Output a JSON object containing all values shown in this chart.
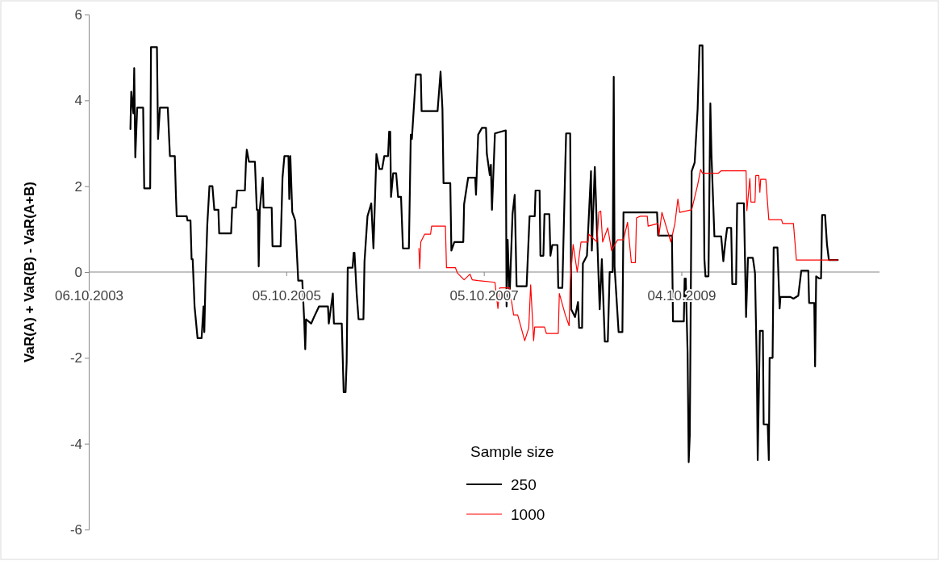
{
  "chart_data": {
    "type": "line",
    "ylabel": "VaR(A) + VaR(B) - VaR(A+B)",
    "legend_title": "Sample size",
    "legend": "bottom",
    "grid": false,
    "marker": "none",
    "line_style": "solid",
    "xlim": [
      "2003-10-06",
      "2011-10-06"
    ],
    "xticks": [
      {
        "value": "2003-10-06",
        "label": "06.10.2003"
      },
      {
        "value": "2005-10-05",
        "label": "05.10.2005"
      },
      {
        "value": "2007-10-05",
        "label": "05.10.2007"
      },
      {
        "value": "2009-10-04",
        "label": "04.10.2009"
      }
    ],
    "ylim": [
      -6,
      6
    ],
    "yticks": [
      -6,
      -4,
      -2,
      0,
      2,
      4,
      6
    ],
    "series": [
      {
        "name": "250",
        "color": "#000000",
        "x": [
          "2004-03-08",
          "2004-03-11",
          "2004-03-19",
          "2004-03-22",
          "2004-03-26",
          "2004-04-02",
          "2004-04-24",
          "2004-04-28",
          "2004-05-20",
          "2004-05-23",
          "2004-06-14",
          "2004-06-18",
          "2004-06-25",
          "2004-07-24",
          "2004-08-01",
          "2004-08-19",
          "2004-08-23",
          "2004-08-26",
          "2004-10-02",
          "2004-10-05",
          "2004-10-16",
          "2004-10-20",
          "2004-10-24",
          "2004-10-31",
          "2004-11-11",
          "2004-11-26",
          "2004-12-03",
          "2004-12-06",
          "2004-12-10",
          "2004-12-17",
          "2004-12-25",
          "2005-01-05",
          "2005-01-12",
          "2005-01-27",
          "2005-01-30",
          "2005-03-15",
          "2005-03-19",
          "2005-04-02",
          "2005-04-06",
          "2005-05-05",
          "2005-05-09",
          "2005-05-12",
          "2005-05-20",
          "2005-06-11",
          "2005-06-18",
          "2005-06-22",
          "2005-06-25",
          "2005-06-29",
          "2005-07-10",
          "2005-07-13",
          "2005-08-12",
          "2005-08-15",
          "2005-09-14",
          "2005-09-21",
          "2005-09-28",
          "2005-10-13",
          "2005-10-16",
          "2005-10-20",
          "2005-10-27",
          "2005-11-07",
          "2005-11-15",
          "2005-11-18",
          "2005-12-03",
          "2005-12-10",
          "2005-12-14",
          "2005-12-17",
          "2006-01-05",
          "2006-01-19",
          "2006-02-03",
          "2006-03-08",
          "2006-03-11",
          "2006-03-26",
          "2006-03-30",
          "2006-04-28",
          "2006-05-05",
          "2006-05-12",
          "2006-05-16",
          "2006-05-20",
          "2006-06-07",
          "2006-06-11",
          "2006-06-14",
          "2006-06-22",
          "2006-06-29",
          "2006-07-17",
          "2006-07-21",
          "2006-08-01",
          "2006-08-15",
          "2006-08-23",
          "2006-09-03",
          "2006-09-14",
          "2006-09-24",
          "2006-10-02",
          "2006-10-16",
          "2006-10-20",
          "2006-10-24",
          "2006-10-27",
          "2006-11-04",
          "2006-11-15",
          "2006-11-22",
          "2006-12-03",
          "2006-12-10",
          "2007-01-01",
          "2007-01-08",
          "2007-01-12",
          "2007-01-27",
          "2007-02-14",
          "2007-02-17",
          "2007-04-17",
          "2007-04-28",
          "2007-05-05",
          "2007-05-09",
          "2007-06-03",
          "2007-06-07",
          "2007-06-18",
          "2007-07-21",
          "2007-07-24",
          "2007-08-08",
          "2007-09-03",
          "2007-09-06",
          "2007-09-14",
          "2007-09-28",
          "2007-10-13",
          "2007-10-16",
          "2007-10-27",
          "2007-10-31",
          "2007-11-04",
          "2007-11-15",
          "2007-12-25",
          "2007-12-28",
          "2008-01-01",
          "2008-01-08",
          "2008-01-19",
          "2008-01-27",
          "2008-02-03",
          "2008-03-11",
          "2008-03-22",
          "2008-04-10",
          "2008-04-13",
          "2008-04-28",
          "2008-05-01",
          "2008-05-12",
          "2008-05-16",
          "2008-06-03",
          "2008-06-07",
          "2008-06-14",
          "2008-07-03",
          "2008-07-06",
          "2008-07-21",
          "2008-08-01",
          "2008-08-04",
          "2008-08-19",
          "2008-08-23",
          "2008-09-06",
          "2008-09-17",
          "2008-09-21",
          "2008-10-02",
          "2008-10-05",
          "2008-10-20",
          "2008-11-04",
          "2008-11-07",
          "2008-11-18",
          "2008-12-06",
          "2008-12-14",
          "2008-12-25",
          "2009-01-05",
          "2009-01-12",
          "2009-01-23",
          "2009-01-27",
          "2009-01-30",
          "2009-02-14",
          "2009-02-28",
          "2009-03-04",
          "2009-07-06",
          "2009-07-10",
          "2009-08-30",
          "2009-09-03",
          "2009-10-13",
          "2009-10-16",
          "2009-10-20",
          "2009-10-27",
          "2009-10-31",
          "2009-11-04",
          "2009-11-11",
          "2009-11-22",
          "2009-12-03",
          "2009-12-10",
          "2009-12-21",
          "2009-12-28",
          "2010-01-01",
          "2010-01-12",
          "2010-01-19",
          "2010-01-23",
          "2010-02-03",
          "2010-02-28",
          "2010-03-08",
          "2010-03-15",
          "2010-03-22",
          "2010-04-06",
          "2010-04-10",
          "2010-04-24",
          "2010-04-28",
          "2010-05-23",
          "2010-05-27",
          "2010-05-31",
          "2010-06-07",
          "2010-06-25",
          "2010-07-03",
          "2010-07-10",
          "2010-07-13",
          "2010-07-21",
          "2010-08-01",
          "2010-08-04",
          "2010-08-19",
          "2010-08-23",
          "2010-08-26",
          "2010-09-06",
          "2010-09-10",
          "2010-09-24",
          "2010-10-02",
          "2010-10-05",
          "2010-11-11",
          "2010-11-22",
          "2010-12-10",
          "2010-12-21",
          "2011-01-16",
          "2011-01-19",
          "2011-02-07",
          "2011-02-10",
          "2011-02-14",
          "2011-02-25",
          "2011-03-04",
          "2011-03-08",
          "2011-03-19",
          "2011-03-26",
          "2011-04-02",
          "2011-05-05"
        ],
        "values": [
          3.33,
          4.2,
          3.7,
          4.75,
          2.67,
          3.83,
          3.83,
          1.95,
          1.95,
          5.24,
          5.24,
          3.1,
          3.83,
          3.83,
          2.7,
          2.7,
          1.8,
          1.3,
          1.3,
          1.2,
          1.2,
          0.3,
          0.3,
          -0.8,
          -1.54,
          -1.54,
          -0.8,
          -1.4,
          -0.3,
          1.1,
          2.0,
          2.0,
          1.45,
          1.45,
          0.9,
          0.9,
          1.5,
          1.5,
          1.9,
          1.9,
          2.57,
          2.85,
          2.57,
          2.57,
          1.45,
          1.45,
          0.13,
          1.45,
          2.2,
          1.5,
          1.5,
          0.6,
          0.6,
          2.2,
          2.7,
          2.7,
          1.7,
          2.7,
          1.4,
          1.2,
          0.2,
          -0.2,
          -0.2,
          -1.1,
          -1.8,
          -1.1,
          -1.2,
          -1.0,
          -0.8,
          -0.8,
          -1.2,
          -0.5,
          -1.2,
          -1.2,
          -2.8,
          -2.8,
          -2.1,
          0.1,
          0.1,
          0.45,
          0.45,
          -0.5,
          -1.1,
          -1.1,
          0.25,
          1.3,
          1.6,
          0.55,
          2.75,
          2.4,
          2.4,
          2.7,
          2.7,
          3.27,
          3.27,
          1.75,
          2.3,
          2.3,
          1.75,
          1.75,
          0.55,
          0.55,
          3.2,
          3.1,
          4.6,
          4.6,
          3.75,
          3.75,
          4.67,
          3.8,
          2.07,
          2.07,
          0.5,
          0.7,
          0.7,
          1.58,
          2.2,
          2.2,
          1.8,
          3.2,
          3.36,
          3.36,
          2.76,
          2.26,
          2.5,
          1.45,
          3.23,
          3.3,
          -0.8,
          0.75,
          -0.6,
          1.35,
          1.8,
          -0.33,
          -0.33,
          1.3,
          1.3,
          1.9,
          1.9,
          0.38,
          0.38,
          1.35,
          1.35,
          0.38,
          0.63,
          0.63,
          -0.37,
          -0.37,
          2.5,
          3.23,
          3.23,
          -0.87,
          -1.05,
          -0.7,
          -1.3,
          -1.3,
          0.2,
          0.38,
          2.35,
          0.5,
          2.45,
          -0.87,
          0.3,
          -1.62,
          -1.62,
          0,
          0,
          4.55,
          0.13,
          -1.4,
          -1.4,
          1.39,
          1.39,
          0.85,
          0.85,
          -1.15,
          -1.15,
          -0.15,
          -0.15,
          -1.9,
          -4.43,
          -3.8,
          2.35,
          2.55,
          3.8,
          5.28,
          5.28,
          0.3,
          -0.1,
          -0.1,
          3.93,
          2.75,
          0.83,
          0.83,
          0.25,
          0.68,
          1.03,
          1.03,
          -0.28,
          -0.28,
          1.6,
          1.6,
          0.3,
          -1.05,
          0.33,
          0.33,
          -0.02,
          -2.33,
          -4.38,
          -1.37,
          -1.37,
          -3.55,
          -3.55,
          -4.38,
          -2.0,
          -2.0,
          0.57,
          0.57,
          -0.85,
          -0.58,
          -0.58,
          -0.62,
          -0.55,
          0.03,
          0.03,
          -0.72,
          -0.72,
          -2.2,
          -0.1,
          -0.15,
          -0.15,
          1.33,
          1.33,
          0.64,
          0.28,
          0.28
        ]
      },
      {
        "name": "1000",
        "color": "#ff0000",
        "x": [
          "2007-02-07",
          "2007-02-10",
          "2007-02-14",
          "2007-02-28",
          "2007-03-22",
          "2007-03-26",
          "2007-05-16",
          "2007-05-20",
          "2007-06-22",
          "2007-06-29",
          "2007-07-24",
          "2007-08-15",
          "2007-08-23",
          "2007-09-14",
          "2007-11-15",
          "2007-11-26",
          "2007-12-03",
          "2008-01-08",
          "2008-01-23",
          "2008-02-07",
          "2008-03-04",
          "2008-03-19",
          "2008-03-26",
          "2008-04-06",
          "2008-04-10",
          "2008-05-16",
          "2008-05-23",
          "2008-07-06",
          "2008-07-10",
          "2008-08-01",
          "2008-08-15",
          "2008-08-19",
          "2008-08-30",
          "2008-09-14",
          "2008-09-28",
          "2008-10-24",
          "2008-10-27",
          "2008-11-26",
          "2008-12-03",
          "2008-12-10",
          "2008-12-17",
          "2009-01-05",
          "2009-01-19",
          "2009-02-10",
          "2009-03-04",
          "2009-03-19",
          "2009-04-02",
          "2009-04-17",
          "2009-04-21",
          "2009-05-05",
          "2009-05-31",
          "2009-06-03",
          "2009-07-10",
          "2009-07-13",
          "2009-07-24",
          "2009-08-26",
          "2009-09-10",
          "2009-09-21",
          "2009-09-28",
          "2009-11-11",
          "2009-12-03",
          "2009-12-14",
          "2009-12-21",
          "2010-02-17",
          "2010-02-28",
          "2010-05-31",
          "2010-06-03",
          "2010-06-14",
          "2010-06-18",
          "2010-07-03",
          "2010-07-06",
          "2010-07-17",
          "2010-07-21",
          "2010-07-24",
          "2010-08-12",
          "2010-08-23",
          "2010-10-09",
          "2010-10-13",
          "2010-11-22",
          "2010-12-03",
          "2011-05-05"
        ],
        "values": [
          0.55,
          0.08,
          0.7,
          0.88,
          0.88,
          1.07,
          1.07,
          0.1,
          0.1,
          -0.02,
          -0.18,
          -0.05,
          -0.18,
          -0.2,
          -0.24,
          -0.85,
          -0.37,
          -0.37,
          -1.0,
          -1.0,
          -1.6,
          -1.3,
          -0.3,
          -1.6,
          -1.28,
          -1.28,
          -1.43,
          -1.43,
          -0.5,
          -1.0,
          -1.25,
          -0.24,
          0.64,
          0,
          0.7,
          0.7,
          0.88,
          0.7,
          1.39,
          1.42,
          0.7,
          1.03,
          0.5,
          0.75,
          0.75,
          1.16,
          0.22,
          0.22,
          1.26,
          1.3,
          1.3,
          1.07,
          1.13,
          0.85,
          1.39,
          0.7,
          1.13,
          1.7,
          1.39,
          1.45,
          2.03,
          2.39,
          2.3,
          2.3,
          2.36,
          2.36,
          1.43,
          2.18,
          1.63,
          1.63,
          2.25,
          2.25,
          1.86,
          2.16,
          2.16,
          1.22,
          1.22,
          1.13,
          1.13,
          0.28,
          0.28
        ]
      }
    ]
  }
}
